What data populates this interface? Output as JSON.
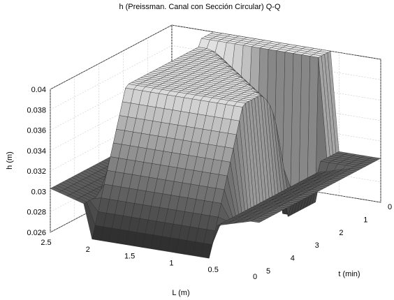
{
  "chart_data": {
    "type": "surface",
    "title": "h (Preissman. Canal con Sección Circular) Q-Q",
    "xlabel": "L (m)",
    "ylabel": "t (min)",
    "zlabel": "h (m)",
    "x_ticks": [
      "2.5",
      "2",
      "1.5",
      "1",
      "0.5",
      "0"
    ],
    "x_tick_values": [
      2.5,
      2,
      1.5,
      1,
      0.5,
      0
    ],
    "y_ticks": [
      "0",
      "1",
      "2",
      "3",
      "4",
      "5"
    ],
    "y_tick_values": [
      0,
      1,
      2,
      3,
      4,
      5
    ],
    "z_ticks": [
      "0.026",
      "0.028",
      "0.03",
      "0.032",
      "0.034",
      "0.036",
      "0.038",
      "0.04"
    ],
    "z_tick_values": [
      0.026,
      0.028,
      0.03,
      0.032,
      0.034,
      0.036,
      0.038,
      0.04
    ],
    "xlim": [
      0,
      2.5
    ],
    "ylim": [
      0,
      5
    ],
    "zlim": [
      0.026,
      0.04
    ],
    "surface": {
      "x": [
        2.5,
        2.4,
        2.3,
        2.2,
        2.1,
        2.0,
        1.9,
        1.8,
        1.7,
        1.6,
        1.5,
        1.4,
        1.3,
        1.2,
        1.1,
        1.0,
        0.9,
        0.8,
        0.7,
        0.6,
        0.5,
        0.4,
        0.3,
        0.2,
        0.1,
        0.0
      ],
      "t": [
        5.0,
        4.5,
        4.0,
        3.5,
        3.0,
        2.5,
        2.0,
        1.5,
        1.0,
        0.5,
        0.0
      ],
      "h_upstream_plateau": 0.04,
      "h_initial": 0.0303,
      "h_minimum": 0.026
    },
    "grid": true,
    "colormap": "gray"
  }
}
